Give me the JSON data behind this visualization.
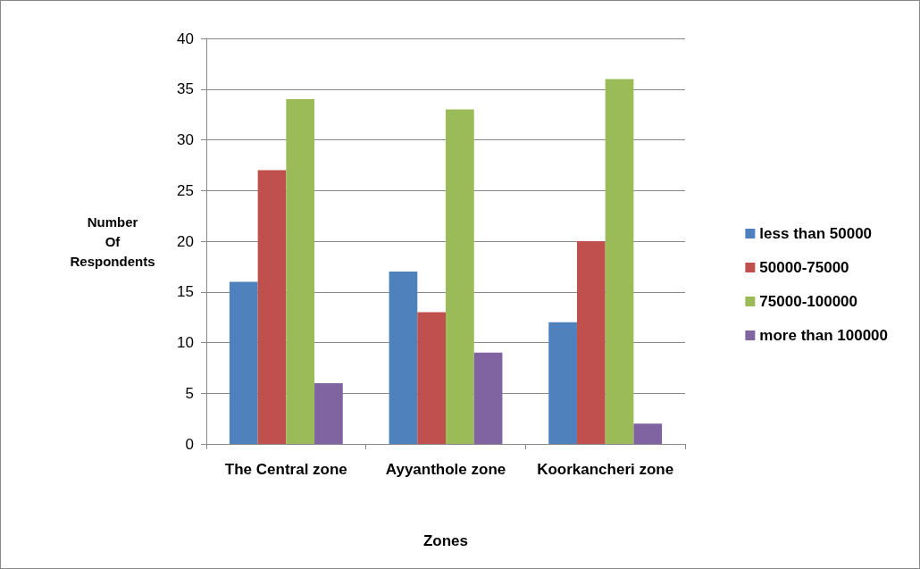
{
  "chart_data": {
    "type": "bar",
    "xlabel": "Zones",
    "ylabel": "Number Of Respondents",
    "categories": [
      "The Central zone",
      "Ayyanthole zone",
      "Koorkancheri zone"
    ],
    "series": [
      {
        "name": "less than 50000",
        "color": "#4f81bd",
        "values": [
          16,
          17,
          12
        ]
      },
      {
        "name": "50000-75000",
        "color": "#c0504d",
        "values": [
          27,
          13,
          20
        ]
      },
      {
        "name": "75000-100000",
        "color": "#9bbb59",
        "values": [
          34,
          33,
          36
        ]
      },
      {
        "name": "more than 100000",
        "color": "#8064a2",
        "values": [
          6,
          9,
          2
        ]
      }
    ],
    "ylim": [
      0,
      40
    ],
    "yticks": [
      0,
      5,
      10,
      15,
      20,
      25,
      30,
      35,
      40
    ],
    "grid": "y",
    "legend": "right"
  }
}
